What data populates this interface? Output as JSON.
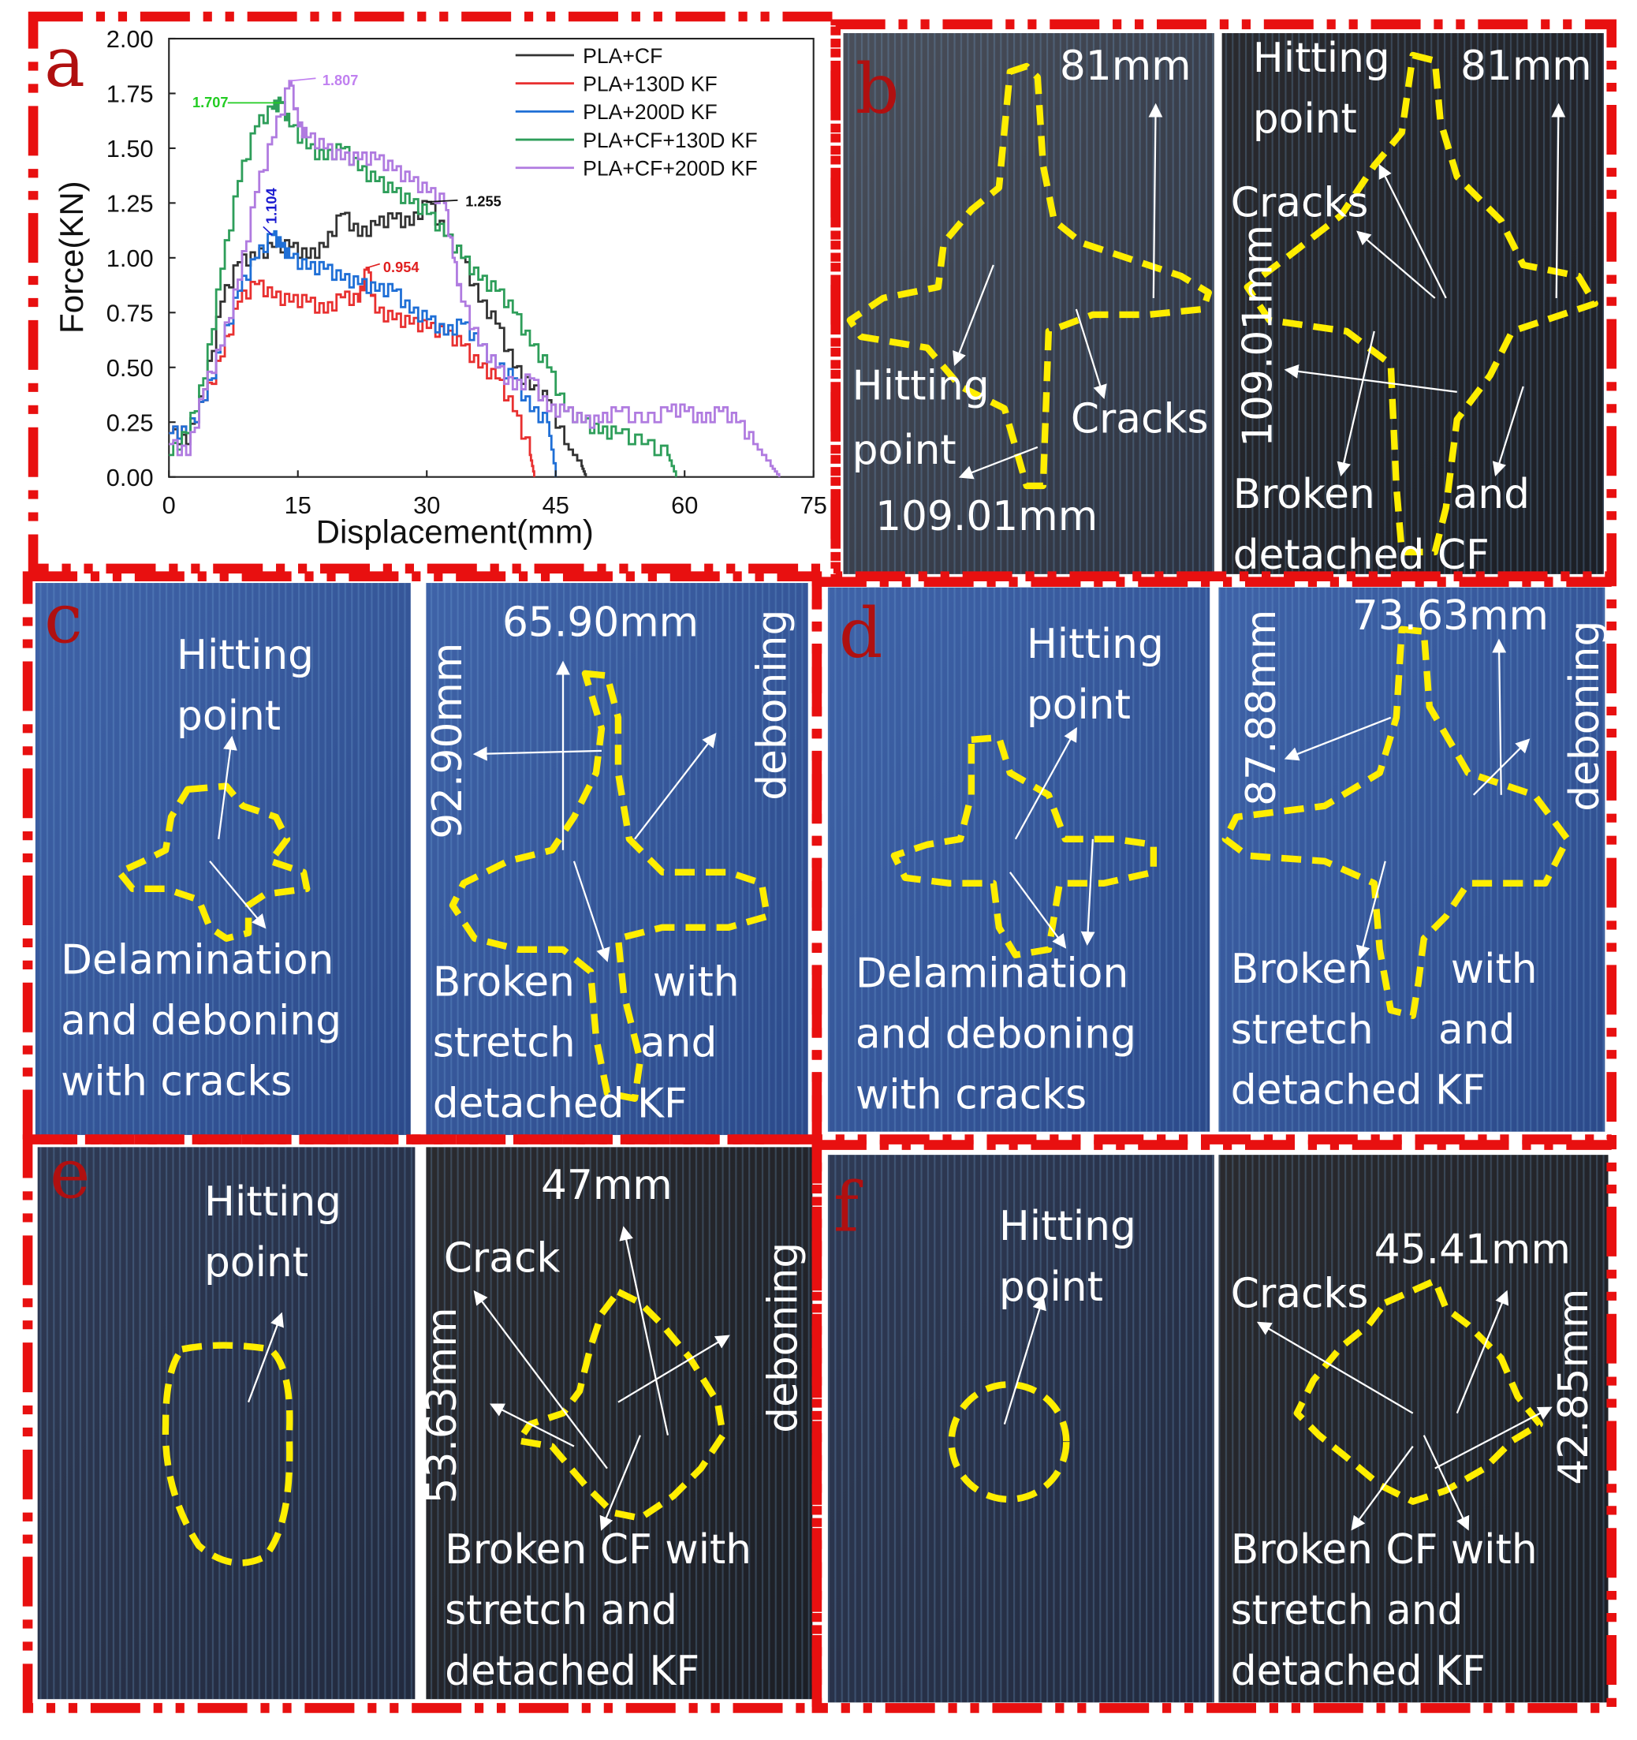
{
  "panels": {
    "a": "a",
    "b": "b",
    "c": "c",
    "d": "d",
    "e": "e",
    "f": "f"
  },
  "colors": {
    "border": "#e81010",
    "outline": "#ffee00",
    "panel_letter": "#b01010"
  },
  "chart_data": {
    "type": "line",
    "xlabel": "Displacement(mm)",
    "ylabel": "Force(KN)",
    "xlim": [
      0,
      75
    ],
    "ylim": [
      0,
      2.0
    ],
    "xticks": [
      "0",
      "15",
      "30",
      "45",
      "60",
      "75"
    ],
    "yticks": [
      "0.00",
      "0.25",
      "0.50",
      "0.75",
      "1.00",
      "1.25",
      "1.50",
      "1.75",
      "2.00"
    ],
    "legend_position": "top-right",
    "grid": false,
    "series": [
      {
        "name": "PLA+CF",
        "color": "#333333",
        "points": [
          [
            0,
            0.2
          ],
          [
            2,
            0.15
          ],
          [
            4,
            0.4
          ],
          [
            6,
            0.8
          ],
          [
            8,
            0.98
          ],
          [
            10,
            1.0
          ],
          [
            12,
            1.05
          ],
          [
            14,
            1.05
          ],
          [
            16,
            1.0
          ],
          [
            18,
            1.05
          ],
          [
            20,
            1.2
          ],
          [
            22,
            1.1
          ],
          [
            24,
            1.15
          ],
          [
            26,
            1.18
          ],
          [
            28,
            1.15
          ],
          [
            30,
            1.255
          ],
          [
            32,
            1.1
          ],
          [
            34,
            1.0
          ],
          [
            36,
            0.8
          ],
          [
            38,
            0.7
          ],
          [
            40,
            0.5
          ],
          [
            42,
            0.4
          ],
          [
            44,
            0.35
          ],
          [
            46,
            0.15
          ],
          [
            48,
            0.05
          ],
          [
            48.5,
            0
          ]
        ]
      },
      {
        "name": "PLA+130D KF",
        "color": "#e83030",
        "points": [
          [
            0,
            0.2
          ],
          [
            2,
            0.2
          ],
          [
            4,
            0.35
          ],
          [
            6,
            0.55
          ],
          [
            8,
            0.8
          ],
          [
            10,
            0.88
          ],
          [
            12,
            0.82
          ],
          [
            14,
            0.8
          ],
          [
            16,
            0.8
          ],
          [
            18,
            0.75
          ],
          [
            20,
            0.82
          ],
          [
            22,
            0.8
          ],
          [
            23,
            0.954
          ],
          [
            24,
            0.75
          ],
          [
            26,
            0.72
          ],
          [
            28,
            0.7
          ],
          [
            30,
            0.68
          ],
          [
            32,
            0.65
          ],
          [
            34,
            0.6
          ],
          [
            36,
            0.5
          ],
          [
            38,
            0.45
          ],
          [
            40,
            0.3
          ],
          [
            42,
            0.1
          ],
          [
            42.5,
            0
          ]
        ]
      },
      {
        "name": "PLA+200D KF",
        "color": "#1f6fd6",
        "points": [
          [
            0,
            0.2
          ],
          [
            2,
            0.2
          ],
          [
            4,
            0.35
          ],
          [
            6,
            0.6
          ],
          [
            8,
            0.85
          ],
          [
            10,
            1.0
          ],
          [
            12,
            1.104
          ],
          [
            13,
            1.05
          ],
          [
            14,
            1.0
          ],
          [
            16,
            0.95
          ],
          [
            18,
            0.95
          ],
          [
            20,
            0.9
          ],
          [
            22,
            0.88
          ],
          [
            24,
            0.85
          ],
          [
            26,
            0.85
          ],
          [
            28,
            0.75
          ],
          [
            30,
            0.72
          ],
          [
            32,
            0.65
          ],
          [
            34,
            0.7
          ],
          [
            36,
            0.6
          ],
          [
            38,
            0.5
          ],
          [
            40,
            0.45
          ],
          [
            42,
            0.3
          ],
          [
            44,
            0.25
          ],
          [
            45,
            0
          ]
        ]
      },
      {
        "name": "PLA+CF+130D KF",
        "color": "#2e9e5a",
        "points": [
          [
            0,
            0.1
          ],
          [
            2,
            0.2
          ],
          [
            4,
            0.45
          ],
          [
            6,
            0.95
          ],
          [
            8,
            1.35
          ],
          [
            10,
            1.6
          ],
          [
            12,
            1.68
          ],
          [
            13,
            1.707
          ],
          [
            14,
            1.6
          ],
          [
            16,
            1.5
          ],
          [
            18,
            1.45
          ],
          [
            20,
            1.5
          ],
          [
            22,
            1.4
          ],
          [
            24,
            1.35
          ],
          [
            26,
            1.3
          ],
          [
            28,
            1.25
          ],
          [
            30,
            1.2
          ],
          [
            32,
            1.1
          ],
          [
            34,
            1.0
          ],
          [
            36,
            0.9
          ],
          [
            38,
            0.85
          ],
          [
            40,
            0.75
          ],
          [
            42,
            0.6
          ],
          [
            44,
            0.5
          ],
          [
            46,
            0.3
          ],
          [
            48,
            0.25
          ],
          [
            50,
            0.2
          ],
          [
            52,
            0.2
          ],
          [
            55,
            0.15
          ],
          [
            58,
            0.1
          ],
          [
            59,
            0
          ]
        ]
      },
      {
        "name": "PLA+CF+200D KF",
        "color": "#b07be0",
        "points": [
          [
            0,
            0.15
          ],
          [
            2,
            0.1
          ],
          [
            4,
            0.4
          ],
          [
            6,
            0.6
          ],
          [
            8,
            0.9
          ],
          [
            10,
            1.3
          ],
          [
            12,
            1.55
          ],
          [
            14,
            1.807
          ],
          [
            15,
            1.6
          ],
          [
            16,
            1.55
          ],
          [
            18,
            1.5
          ],
          [
            20,
            1.45
          ],
          [
            22,
            1.45
          ],
          [
            24,
            1.45
          ],
          [
            26,
            1.4
          ],
          [
            28,
            1.35
          ],
          [
            30,
            1.3
          ],
          [
            32,
            1.25
          ],
          [
            33,
            1.0
          ],
          [
            34,
            0.8
          ],
          [
            36,
            0.6
          ],
          [
            38,
            0.5
          ],
          [
            40,
            0.4
          ],
          [
            42,
            0.45
          ],
          [
            44,
            0.3
          ],
          [
            46,
            0.3
          ],
          [
            48,
            0.25
          ],
          [
            50,
            0.25
          ],
          [
            52,
            0.3
          ],
          [
            55,
            0.25
          ],
          [
            58,
            0.3
          ],
          [
            60,
            0.3
          ],
          [
            62,
            0.25
          ],
          [
            64,
            0.3
          ],
          [
            66,
            0.25
          ],
          [
            68,
            0.15
          ],
          [
            70,
            0.05
          ],
          [
            71,
            0
          ]
        ]
      }
    ],
    "annotations": [
      {
        "text": "1.807",
        "x": 14,
        "y": 1.807,
        "color": "#c080f0"
      },
      {
        "text": "1.707",
        "x": 13,
        "y": 1.707,
        "color": "#22cc22"
      },
      {
        "text": "1.104",
        "x": 12,
        "y": 1.104,
        "color": "#1a1ad0"
      },
      {
        "text": "1.255",
        "x": 30,
        "y": 1.255,
        "color": "#111111"
      },
      {
        "text": "0.954",
        "x": 23,
        "y": 0.954,
        "color": "#e02020"
      }
    ]
  },
  "photos": {
    "b1": {
      "dim_top": "81mm",
      "hit1": "Hitting",
      "hit2": "point",
      "cracks": "Cracks",
      "dim_bottom": "109.01mm"
    },
    "b2": {
      "hit1": "Hitting",
      "hit2": "point",
      "dim_top": "81mm",
      "cracks": "Cracks",
      "dim_side": "109.01mm",
      "l1": "Broken      and",
      "l2": "detached CF"
    },
    "c1": {
      "hit1": "Hitting",
      "hit2": "point",
      "l1": "Delamination",
      "l2": "and deboning",
      "l3": "with cracks"
    },
    "c2": {
      "dim_top": "65.90mm",
      "dim_side": "92.90mm",
      "side": "deboning",
      "l1": "Broken      with",
      "l2": "stretch     and",
      "l3": "detached KF"
    },
    "d1": {
      "hit1": "Hitting",
      "hit2": "point",
      "l1": "Delamination",
      "l2": "and deboning",
      "l3": "with cracks"
    },
    "d2": {
      "dim_top": "73.63mm",
      "dim_side": "87.88mm",
      "side": "deboning",
      "l1": "Broken      with",
      "l2": "stretch     and",
      "l3": "detached KF"
    },
    "e1": {
      "hit1": "Hitting",
      "hit2": "point"
    },
    "e2": {
      "dim_top": "47mm",
      "crack": "Crack",
      "dim_side": "53.63mm",
      "side": "deboning",
      "l1": "Broken CF with",
      "l2": "stretch and",
      "l3": "detached KF"
    },
    "f1": {
      "hit1": "Hitting",
      "hit2": "point"
    },
    "f2": {
      "dim_top": "45.41mm",
      "cracks": "Cracks",
      "dim_side": "42.85mm",
      "l1": "Broken CF with",
      "l2": "stretch and",
      "l3": "detached KF"
    }
  }
}
